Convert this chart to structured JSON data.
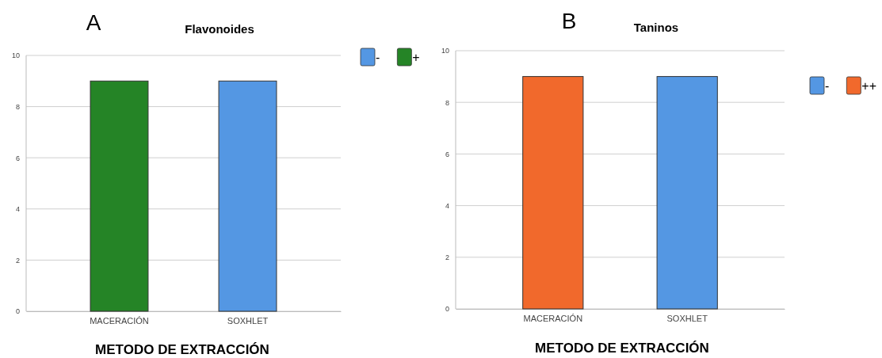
{
  "chart_data": [
    {
      "type": "bar",
      "title": "Flavonoides",
      "xlabel": "METODO DE EXTRACCIÓN",
      "annotations": [
        "A"
      ],
      "categories": [
        "MACERACIÓN",
        "SOXHLET"
      ],
      "stacked": true,
      "series": [
        {
          "name": "-",
          "color": "#5497e3",
          "values": [
            null,
            9
          ]
        },
        {
          "name": "+",
          "color": "#258426",
          "values": [
            9,
            null
          ]
        }
      ],
      "ylim": [
        0,
        10
      ],
      "yticks": [
        0,
        2,
        4,
        6,
        8,
        10
      ],
      "grid": "y",
      "legend": "top right"
    },
    {
      "type": "bar",
      "title": "Taninos",
      "xlabel": "METODO DE EXTRACCIÓN",
      "annotations": [
        "B"
      ],
      "categories": [
        "MACERACIÓN",
        "SOXHLET"
      ],
      "stacked": true,
      "series": [
        {
          "name": "-",
          "color": "#5497e3",
          "values": [
            null,
            9
          ]
        },
        {
          "name": "++",
          "color": "#f1692c",
          "values": [
            9,
            null
          ]
        }
      ],
      "ylim": [
        0,
        10
      ],
      "yticks": [
        0,
        2,
        4,
        6,
        8,
        10
      ],
      "grid": "y",
      "legend": "top right"
    }
  ]
}
